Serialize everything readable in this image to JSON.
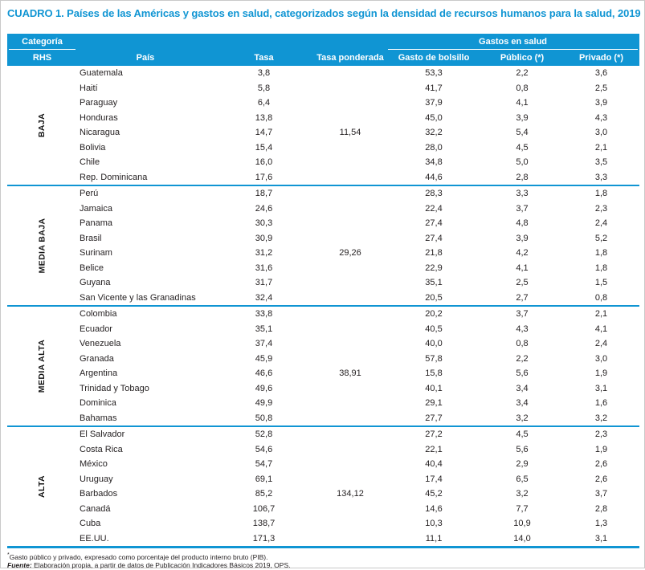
{
  "title": "CUADRO 1. Países de las Américas y gastos en salud, categorizados según la densidad de recursos humanos para la salud, 2019",
  "table": {
    "header": {
      "category_top": "Categoría",
      "category_bottom": "RHS",
      "country": "País",
      "rate": "Tasa",
      "weighted_rate": "Tasa ponderada",
      "expenses_group": "Gastos en salud",
      "out_of_pocket": "Gasto de bolsillo",
      "public": "Público (*)",
      "private": "Privado (*)"
    },
    "groups": [
      {
        "category": "BAJA",
        "weighted_rate": "11,54",
        "rows": [
          {
            "country": "Guatemala",
            "rate": "3,8",
            "oop": "53,3",
            "pub": "2,2",
            "priv": "3,6"
          },
          {
            "country": "Haití",
            "rate": "5,8",
            "oop": "41,7",
            "pub": "0,8",
            "priv": "2,5"
          },
          {
            "country": "Paraguay",
            "rate": "6,4",
            "oop": "37,9",
            "pub": "4,1",
            "priv": "3,9"
          },
          {
            "country": "Honduras",
            "rate": "13,8",
            "oop": "45,0",
            "pub": "3,9",
            "priv": "4,3"
          },
          {
            "country": "Nicaragua",
            "rate": "14,7",
            "oop": "32,2",
            "pub": "5,4",
            "priv": "3,0"
          },
          {
            "country": "Bolivia",
            "rate": "15,4",
            "oop": "28,0",
            "pub": "4,5",
            "priv": "2,1"
          },
          {
            "country": "Chile",
            "rate": "16,0",
            "oop": "34,8",
            "pub": "5,0",
            "priv": "3,5"
          },
          {
            "country": "Rep. Dominicana",
            "rate": "17,6",
            "oop": "44,6",
            "pub": "2,8",
            "priv": "3,3"
          }
        ]
      },
      {
        "category": "MEDIA BAJA",
        "weighted_rate": "29,26",
        "rows": [
          {
            "country": "Perú",
            "rate": "18,7",
            "oop": "28,3",
            "pub": "3,3",
            "priv": "1,8"
          },
          {
            "country": "Jamaica",
            "rate": "24,6",
            "oop": "22,4",
            "pub": "3,7",
            "priv": "2,3"
          },
          {
            "country": "Panama",
            "rate": "30,3",
            "oop": "27,4",
            "pub": "4,8",
            "priv": "2,4"
          },
          {
            "country": "Brasil",
            "rate": "30,9",
            "oop": "27,4",
            "pub": "3,9",
            "priv": "5,2"
          },
          {
            "country": "Surinam",
            "rate": "31,2",
            "oop": "21,8",
            "pub": "4,2",
            "priv": "1,8"
          },
          {
            "country": "Belice",
            "rate": "31,6",
            "oop": "22,9",
            "pub": "4,1",
            "priv": "1,8"
          },
          {
            "country": "Guyana",
            "rate": "31,7",
            "oop": "35,1",
            "pub": "2,5",
            "priv": "1,5"
          },
          {
            "country": "San Vicente y las Granadinas",
            "rate": "32,4",
            "oop": "20,5",
            "pub": "2,7",
            "priv": "0,8"
          }
        ]
      },
      {
        "category": "MEDIA ALTA",
        "weighted_rate": "38,91",
        "rows": [
          {
            "country": "Colombia",
            "rate": "33,8",
            "oop": "20,2",
            "pub": "3,7",
            "priv": "2,1"
          },
          {
            "country": "Ecuador",
            "rate": "35,1",
            "oop": "40,5",
            "pub": "4,3",
            "priv": "4,1"
          },
          {
            "country": "Venezuela",
            "rate": "37,4",
            "oop": "40,0",
            "pub": "0,8",
            "priv": "2,4"
          },
          {
            "country": "Granada",
            "rate": "45,9",
            "oop": "57,8",
            "pub": "2,2",
            "priv": "3,0"
          },
          {
            "country": "Argentina",
            "rate": "46,6",
            "oop": "15,8",
            "pub": "5,6",
            "priv": "1,9"
          },
          {
            "country": "Trinidad y Tobago",
            "rate": "49,6",
            "oop": "40,1",
            "pub": "3,4",
            "priv": "3,1"
          },
          {
            "country": "Dominica",
            "rate": "49,9",
            "oop": "29,1",
            "pub": "3,4",
            "priv": "1,6"
          },
          {
            "country": "Bahamas",
            "rate": "50,8",
            "oop": "27,7",
            "pub": "3,2",
            "priv": "3,2"
          }
        ]
      },
      {
        "category": "ALTA",
        "weighted_rate": "134,12",
        "rows": [
          {
            "country": "El Salvador",
            "rate": "52,8",
            "oop": "27,2",
            "pub": "4,5",
            "priv": "2,3"
          },
          {
            "country": "Costa Rica",
            "rate": "54,6",
            "oop": "22,1",
            "pub": "5,6",
            "priv": "1,9"
          },
          {
            "country": "México",
            "rate": "54,7",
            "oop": "40,4",
            "pub": "2,9",
            "priv": "2,6"
          },
          {
            "country": "Uruguay",
            "rate": "69,1",
            "oop": "17,4",
            "pub": "6,5",
            "priv": "2,6"
          },
          {
            "country": "Barbados",
            "rate": "85,2",
            "oop": "45,2",
            "pub": "3,2",
            "priv": "3,7"
          },
          {
            "country": "Canadá",
            "rate": "106,7",
            "oop": "14,6",
            "pub": "7,7",
            "priv": "2,8"
          },
          {
            "country": "Cuba",
            "rate": "138,7",
            "oop": "10,3",
            "pub": "10,9",
            "priv": "1,3"
          },
          {
            "country": "EE.UU.",
            "rate": "171,3",
            "oop": "11,1",
            "pub": "14,0",
            "priv": "3,1"
          }
        ]
      }
    ]
  },
  "footnotes": {
    "note_marker": "*",
    "note_text": "Gasto público y privado, expresado como porcentaje del producto interno bruto (PIB).",
    "source_label": "Fuente:",
    "source_text": "Elaboración propia, a partir de datos de Publicación Indicadores Básicos 2019, OPS."
  },
  "colors": {
    "accent_blue": "#1095d3",
    "text": "#231f20",
    "page_border": "#c9c9c9"
  }
}
